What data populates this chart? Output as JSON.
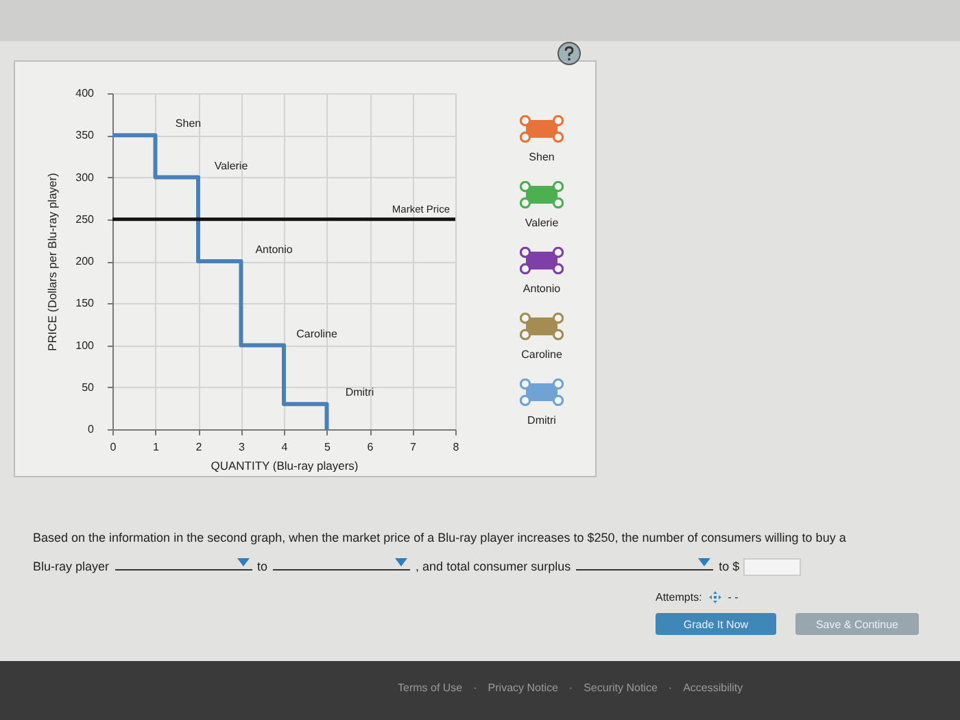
{
  "chart_data": {
    "type": "step",
    "xlabel": "QUANTITY (Blu-ray players)",
    "ylabel": "PRICE (Dollars per Blu-ray player)",
    "series": [
      {
        "color": "#4a80b8",
        "x": [
          0,
          1,
          2,
          3,
          4,
          5
        ],
        "values": [
          350,
          300,
          200,
          100,
          30,
          0
        ]
      }
    ],
    "xlim": [
      0,
      8
    ],
    "xticks": [
      0,
      1,
      2,
      3,
      4,
      5,
      6,
      7,
      8
    ],
    "ylim": [
      0,
      400
    ],
    "yticks": [
      0,
      50,
      100,
      150,
      200,
      250,
      300,
      350,
      400
    ],
    "grid": true,
    "ref_lines": [
      {
        "axis": "y",
        "value": 250,
        "label": "Market Price",
        "color": "#111111"
      }
    ],
    "annotations": [
      "Shen",
      "Valerie",
      "Antonio",
      "Caroline",
      "Dmitri",
      "Shen",
      "Valerie",
      "Antonio",
      "Caroline",
      "Dmitri",
      "Based on the information in the second graph, when the market price of a Blu-ray player increases to $250, the number of consumers willing to buy a",
      "Blu-ray player",
      "to",
      ", and total consumer surplus",
      "to $",
      "Attempts:",
      "- -",
      "Grade It Now",
      "Save & Continue",
      "Terms of Use",
      "·",
      "Privacy Notice",
      "·",
      "Security Notice",
      "·",
      "Accessibility"
    ]
  }
}
